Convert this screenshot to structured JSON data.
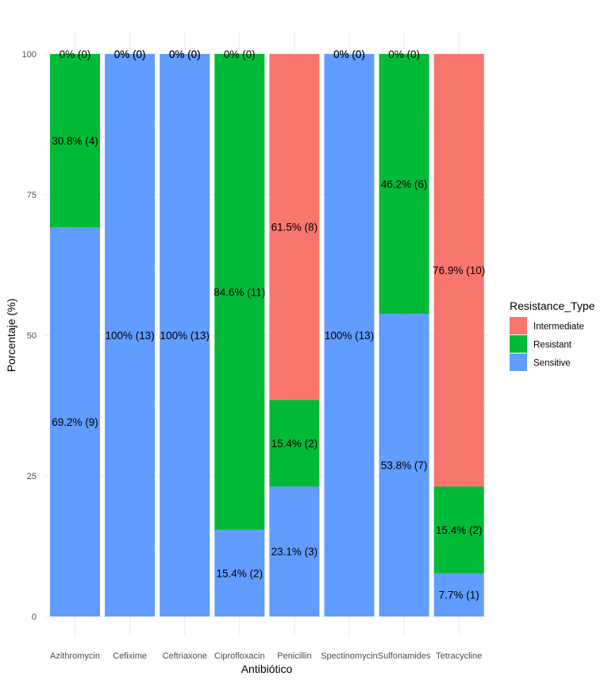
{
  "chart_data": {
    "type": "bar",
    "stacked": true,
    "xlabel": "Antibiótico",
    "ylabel": "Porcentaje (%)",
    "ylim": [
      0,
      100
    ],
    "yticks": [
      0,
      25,
      50,
      75,
      100
    ],
    "grid": true,
    "legend_position": "right",
    "legend_title": "Resistance_Type",
    "categories": [
      "Azithromycin",
      "Cefixime",
      "Ceftriaxone",
      "Ciprofloxacin",
      "Penicillin",
      "Spectinomycin",
      "Sulfonamides",
      "Tetracycline"
    ],
    "series": [
      {
        "name": "Intermediate",
        "color": "#F8766D",
        "values": [
          0,
          0,
          0,
          0,
          61.5,
          0,
          0,
          76.9
        ],
        "labels": [
          "0% (0)",
          "0% (0)",
          "0% (0)",
          "0% (0)",
          "61.5% (8)",
          "0% (0)",
          "0% (0)",
          "76.9% (10)"
        ]
      },
      {
        "name": "Resistant",
        "color": "#00BA38",
        "values": [
          30.8,
          0,
          0,
          84.6,
          15.4,
          0,
          46.2,
          15.4
        ],
        "labels": [
          "30.8% (4)",
          "0% (0)",
          "0% (0)",
          "84.6% (11)",
          "15.4% (2)",
          "0% (0)",
          "46.2% (6)",
          "15.4% (2)"
        ]
      },
      {
        "name": "Sensitive",
        "color": "#619CFF",
        "values": [
          69.2,
          100,
          100,
          15.4,
          23.1,
          100,
          53.8,
          7.7
        ],
        "labels": [
          "69.2% (9)",
          "100% (13)",
          "100% (13)",
          "15.4% (2)",
          "23.1% (3)",
          "100% (13)",
          "53.8% (7)",
          "7.7% (1)"
        ]
      }
    ]
  }
}
